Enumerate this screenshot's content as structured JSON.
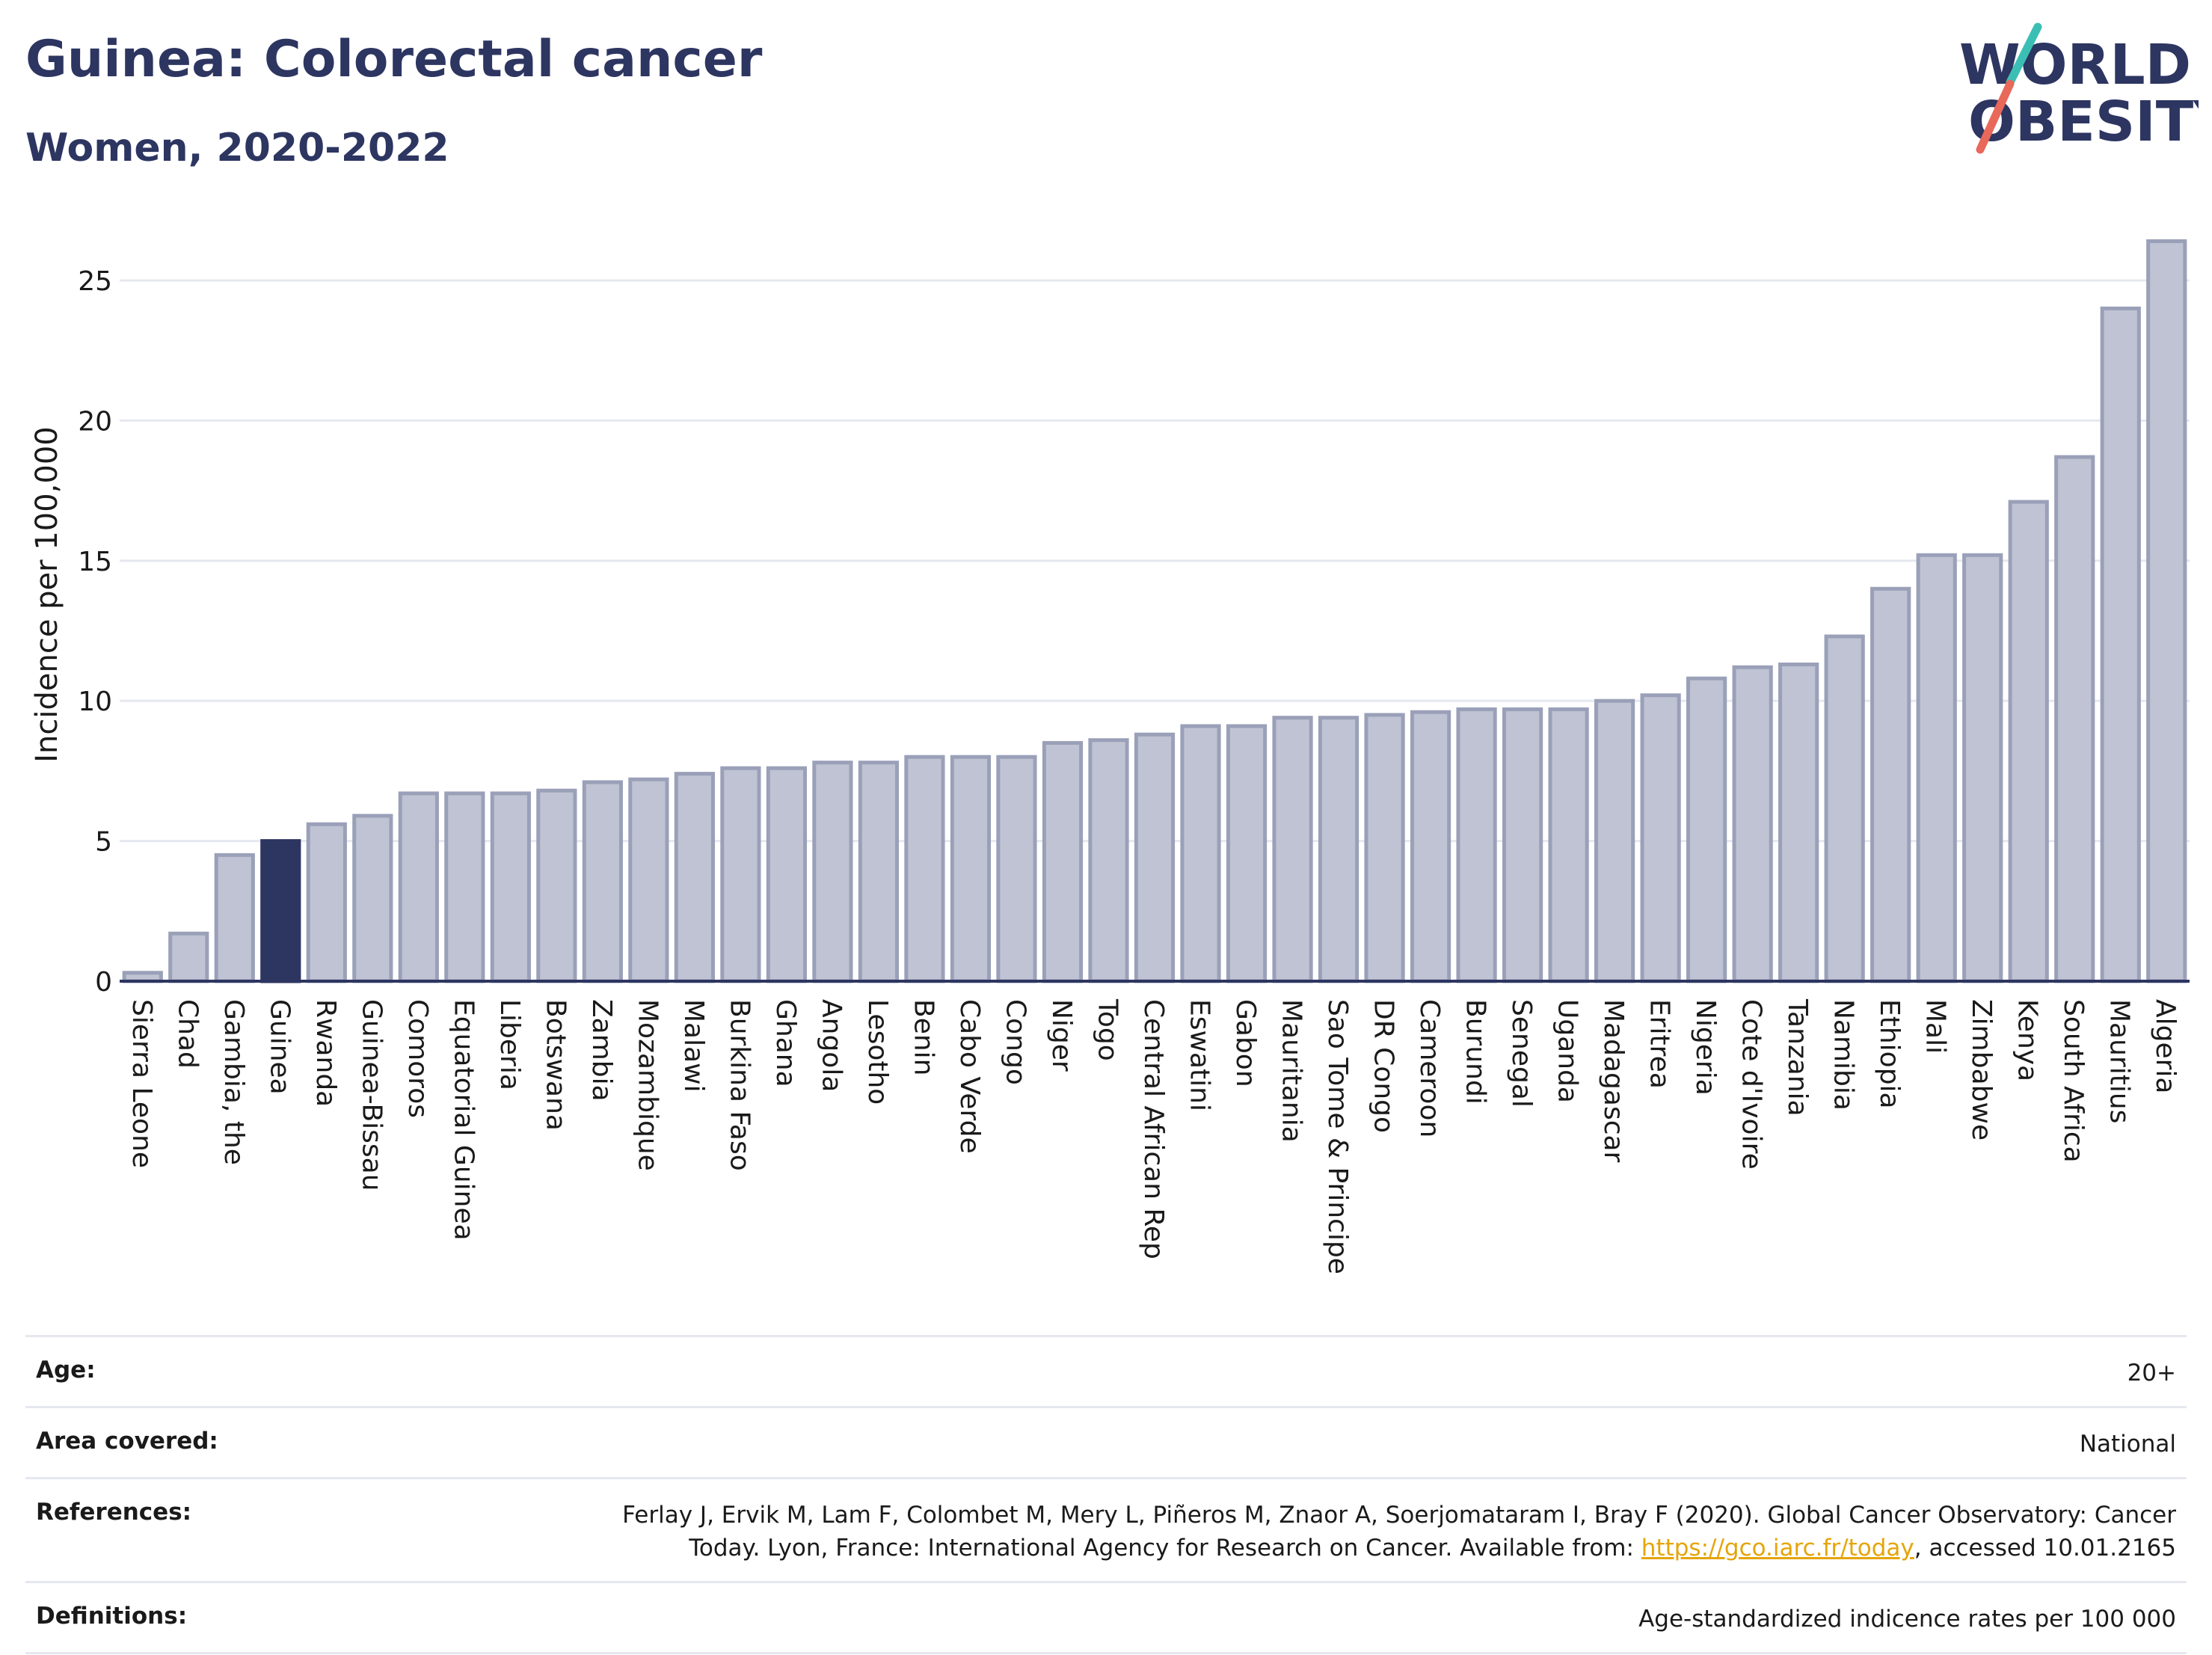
{
  "header": {
    "title": "Guinea: Colorectal cancer",
    "subtitle": "Women, 2020-2022"
  },
  "logo": {
    "line1": "WORLD",
    "line2": "OBESITY",
    "accent_teal": "#3bbfb5",
    "accent_red": "#e8685a",
    "text_color": "#2d3561"
  },
  "colors": {
    "bar_default": "#bfc3d3",
    "bar_border": "#9aa0b8",
    "bar_highlight": "#2d3561",
    "grid": "#e6e8ef",
    "axis": "#2d3561"
  },
  "chart_data": {
    "type": "bar",
    "ylabel": "Incidence per 100,000",
    "xlabel": "",
    "ylim": [
      0,
      27
    ],
    "yticks": [
      0,
      5,
      10,
      15,
      20,
      25
    ],
    "grid": true,
    "highlight": "Guinea",
    "categories": [
      "Sierra Leone",
      "Chad",
      "Gambia, the",
      "Guinea",
      "Rwanda",
      "Guinea-Bissau",
      "Comoros",
      "Equatorial Guinea",
      "Liberia",
      "Botswana",
      "Zambia",
      "Mozambique",
      "Malawi",
      "Burkina Faso",
      "Ghana",
      "Angola",
      "Lesotho",
      "Benin",
      "Cabo Verde",
      "Congo",
      "Niger",
      "Togo",
      "Central African Rep",
      "Eswatini",
      "Gabon",
      "Mauritania",
      "Sao Tome & Principe",
      "DR Congo",
      "Cameroon",
      "Burundi",
      "Senegal",
      "Uganda",
      "Madagascar",
      "Eritrea",
      "Nigeria",
      "Cote d'Ivoire",
      "Tanzania",
      "Namibia",
      "Ethiopia",
      "Mali",
      "Zimbabwe",
      "Kenya",
      "South Africa",
      "Mauritius",
      "Algeria"
    ],
    "values": [
      0.3,
      1.7,
      4.5,
      5.0,
      5.6,
      5.9,
      6.7,
      6.7,
      6.7,
      6.8,
      7.1,
      7.2,
      7.4,
      7.6,
      7.6,
      7.8,
      7.8,
      8.0,
      8.0,
      8.0,
      8.5,
      8.6,
      8.8,
      9.1,
      9.1,
      9.4,
      9.4,
      9.5,
      9.6,
      9.7,
      9.7,
      9.7,
      10.0,
      10.2,
      10.8,
      11.2,
      11.3,
      12.3,
      14.0,
      15.2,
      15.2,
      17.1,
      18.7,
      24.0,
      26.4
    ]
  },
  "info": {
    "age_label": "Age:",
    "age_value": "20+",
    "area_label": "Area covered:",
    "area_value": "National",
    "references_label": "References:",
    "references_line1": "Ferlay J, Ervik M, Lam F, Colombet M, Mery L, Piñeros M, Znaor A, Soerjomataram I, Bray F (2020). Global Cancer Observatory: Cancer",
    "references_line2_pre": "Today. Lyon, France: International Agency for Research on Cancer. Available from: ",
    "references_link": "https://gco.iarc.fr/today",
    "references_line2_post": ", accessed 10.01.2165",
    "definitions_label": "Definitions:",
    "definitions_value": "Age-standardized indicence rates per 100 000"
  }
}
